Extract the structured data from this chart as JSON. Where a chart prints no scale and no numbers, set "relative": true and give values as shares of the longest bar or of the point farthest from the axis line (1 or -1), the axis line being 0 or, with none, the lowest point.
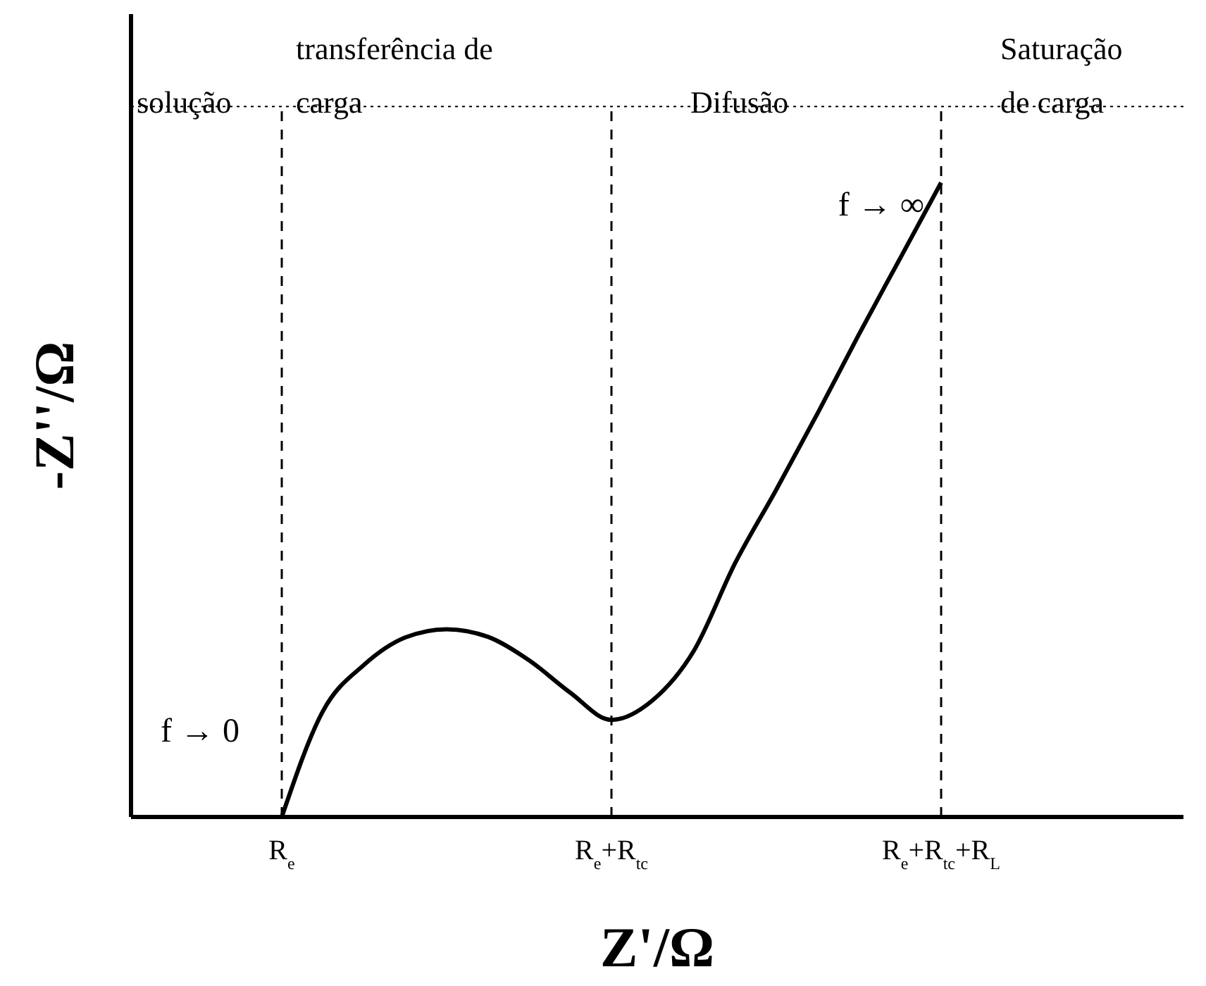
{
  "chart_data": {
    "type": "line",
    "relative": true,
    "xlabel": "Z'/Ω",
    "ylabel": "-Z''/Ω",
    "color": "#000000",
    "marker": "none",
    "line_style": "solid",
    "grid": false,
    "legend": false,
    "tick_labels": "x",
    "categories": [
      "R$_{e}$",
      null,
      null,
      null,
      null,
      null,
      null,
      null,
      "R$_{e}$+R$_{tc}$",
      null,
      null,
      null,
      null,
      null,
      null,
      null,
      "R$_{e}$+R$_{tc}$+R$_{L}$"
    ],
    "values": [
      0,
      0.167,
      0.24,
      0.283,
      0.296,
      0.284,
      0.247,
      0.196,
      0.153,
      0.184,
      0.262,
      0.4,
      0.516,
      0.636,
      0.76,
      0.88,
      1.0
    ],
    "ref_lines": [
      {
        "axis": "x",
        "value": "R$_{e}$",
        "line_style": "dashed"
      },
      {
        "axis": "x",
        "value": "R$_{e}$+R$_{tc}$",
        "line_style": "dashed"
      },
      {
        "axis": "x",
        "value": "R$_{e}$+R$_{tc}$+R$_{L}$",
        "line_style": "dashed"
      },
      {
        "axis": "y",
        "value": 1.12,
        "line_style": "dotted"
      }
    ],
    "annotations": [
      "solução",
      "transferência de carga",
      "Difusão",
      "Saturação de carga",
      {
        "text": "f → 0",
        "x": "R$_{e}$",
        "y": 0
      },
      {
        "text": "f → ∞",
        "x": "R$_{e}$+R$_{tc}$+R$_{L}$",
        "y": 1.0
      }
    ]
  }
}
